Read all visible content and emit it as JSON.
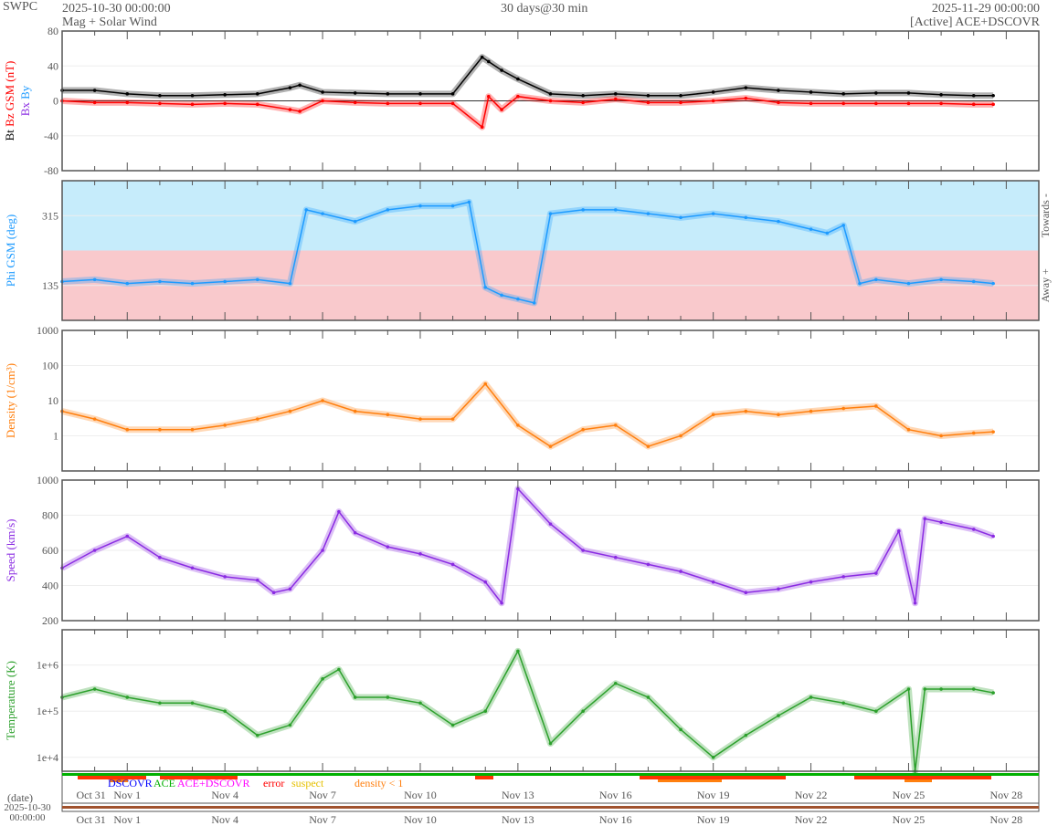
{
  "header": {
    "org": "SWPC",
    "start": "2025-10-30 00:00:00",
    "subtitle": "Mag + Solar Wind",
    "center": "30 days@30 min",
    "end": "2025-11-29 00:00:00",
    "source": "[Active] ACE+DSCOVR"
  },
  "chart_data": {
    "type": "line",
    "x_unit": "days since 2025-10-30 00:00",
    "xlim": [
      0,
      30
    ],
    "x_ticks": [
      {
        "d": 1,
        "label": "Oct 31"
      },
      {
        "d": 2,
        "label": "Nov 1"
      },
      {
        "d": 5,
        "label": "Nov 4"
      },
      {
        "d": 8,
        "label": "Nov 7"
      },
      {
        "d": 11,
        "label": "Nov 10"
      },
      {
        "d": 14,
        "label": "Nov 13"
      },
      {
        "d": 17,
        "label": "Nov 16"
      },
      {
        "d": 20,
        "label": "Nov 19"
      },
      {
        "d": 23,
        "label": "Nov 22"
      },
      {
        "d": 26,
        "label": "Nov 25"
      },
      {
        "d": 29,
        "label": "Nov 28"
      }
    ],
    "panels": [
      {
        "id": "mag",
        "ylabel_parts": [
          {
            "text": "Bt",
            "color": "#000000"
          },
          {
            "text": "Bz GSM (nT)",
            "color": "#ff0000"
          }
        ],
        "legend2": [
          {
            "text": "Bx",
            "color": "#8a2be2"
          },
          {
            "text": "By",
            "color": "#1e9bff"
          }
        ],
        "scale": "linear",
        "ylim": [
          -80,
          80
        ],
        "yticks": [
          80,
          40,
          0,
          -40,
          -80
        ],
        "series": [
          {
            "name": "Bt",
            "color": "#000000",
            "x": [
              0,
              1,
              2,
              3,
              4,
              5,
              6,
              7,
              7.3,
              8,
              9,
              10,
              11,
              12,
              12.9,
              13.1,
              13.5,
              14,
              15,
              16,
              17,
              18,
              19,
              20,
              21,
              22,
              23,
              24,
              25,
              26,
              27,
              28,
              28.6
            ],
            "y": [
              12,
              12,
              8,
              6,
              6,
              7,
              8,
              15,
              18,
              10,
              9,
              8,
              8,
              8,
              50,
              45,
              35,
              25,
              8,
              6,
              8,
              6,
              6,
              10,
              15,
              12,
              10,
              8,
              9,
              9,
              7,
              6,
              6
            ]
          },
          {
            "name": "Bz",
            "color": "#ff0000",
            "x": [
              0,
              1,
              2,
              3,
              4,
              5,
              6,
              7,
              7.3,
              8,
              9,
              10,
              11,
              12,
              12.9,
              13.1,
              13.5,
              14,
              15,
              16,
              17,
              18,
              19,
              20,
              21,
              22,
              23,
              24,
              25,
              26,
              27,
              28,
              28.6
            ],
            "y": [
              0,
              -2,
              -2,
              -3,
              -4,
              -3,
              -4,
              -10,
              -12,
              0,
              -2,
              -3,
              -3,
              -3,
              -30,
              5,
              -10,
              5,
              0,
              -2,
              2,
              -2,
              -2,
              0,
              3,
              -2,
              -3,
              -3,
              -3,
              -3,
              -3,
              -4,
              -4
            ]
          }
        ]
      },
      {
        "id": "phi",
        "ylabel": "Phi GSM (deg)",
        "ylabel_color": "#1e9bff",
        "right_labels": [
          "Towards -",
          "Away +"
        ],
        "scale": "linear",
        "ylim": [
          45,
          405
        ],
        "yticks": [
          315,
          135
        ],
        "series": [
          {
            "name": "Phi",
            "color": "#1e9bff",
            "x": [
              0,
              1,
              2,
              3,
              4,
              5,
              6,
              7,
              7.5,
              8,
              9,
              10,
              11,
              12,
              12.5,
              13,
              13.5,
              14,
              14.5,
              15,
              16,
              17,
              18,
              19,
              20,
              21,
              22,
              23,
              23.5,
              24,
              24.5,
              25,
              26,
              27,
              28,
              28.6
            ],
            "y": [
              145,
              150,
              140,
              145,
              140,
              145,
              150,
              140,
              330,
              320,
              300,
              330,
              340,
              340,
              350,
              130,
              110,
              100,
              90,
              320,
              330,
              330,
              320,
              310,
              320,
              310,
              300,
              280,
              270,
              290,
              140,
              150,
              140,
              150,
              145,
              140
            ]
          }
        ]
      },
      {
        "id": "density",
        "ylabel": "Density (1/cm³)",
        "ylabel_color": "#ff7f0e",
        "scale": "log",
        "ylim": [
          0.1,
          1000
        ],
        "yticks": [
          1000,
          100,
          10,
          1
        ],
        "ytick_labels": [
          "1000",
          "100",
          "10",
          "1"
        ],
        "series": [
          {
            "name": "Density",
            "color": "#ff7f0e",
            "x": [
              0,
              1,
              2,
              3,
              4,
              5,
              6,
              7,
              8,
              9,
              10,
              11,
              12,
              13,
              14,
              15,
              16,
              17,
              18,
              19,
              20,
              21,
              22,
              23,
              24,
              25,
              26,
              27,
              28,
              28.6
            ],
            "y": [
              5,
              3,
              1.5,
              1.5,
              1.5,
              2,
              3,
              5,
              10,
              5,
              4,
              3,
              3,
              30,
              2,
              0.5,
              1.5,
              2,
              0.5,
              1,
              4,
              5,
              4,
              5,
              6,
              7,
              1.5,
              1,
              1.2,
              1.3
            ]
          }
        ]
      },
      {
        "id": "speed",
        "ylabel": "Speed (km/s)",
        "ylabel_color": "#8a2be2",
        "scale": "linear",
        "ylim": [
          200,
          1000
        ],
        "yticks": [
          1000,
          800,
          600,
          400,
          200
        ],
        "series": [
          {
            "name": "Speed",
            "color": "#8a2be2",
            "x": [
              0,
              1,
              2,
              3,
              4,
              5,
              6,
              6.5,
              7,
              8,
              8.5,
              9,
              10,
              11,
              12,
              13,
              13.5,
              14,
              15,
              16,
              17,
              18,
              19,
              20,
              21,
              22,
              23,
              24,
              25,
              25.7,
              26.2,
              26.5,
              27,
              28,
              28.6
            ],
            "y": [
              500,
              600,
              680,
              560,
              500,
              450,
              430,
              360,
              380,
              600,
              820,
              700,
              620,
              580,
              520,
              420,
              300,
              950,
              750,
              600,
              560,
              520,
              480,
              420,
              360,
              380,
              420,
              450,
              470,
              710,
              300,
              780,
              760,
              720,
              680
            ]
          }
        ]
      },
      {
        "id": "temperature",
        "ylabel": "Temperature (K)",
        "ylabel_color": "#2ca02c",
        "scale": "log",
        "ylim": [
          5000,
          5800000
        ],
        "yticks": [
          1000000,
          100000,
          10000
        ],
        "ytick_labels": [
          "1e+6",
          "1e+5",
          "1e+4"
        ],
        "series": [
          {
            "name": "Temperature",
            "color": "#2ca02c",
            "x": [
              0,
              1,
              2,
              3,
              4,
              5,
              6,
              7,
              8,
              8.5,
              9,
              10,
              11,
              12,
              13,
              14,
              15,
              16,
              17,
              18,
              19,
              20,
              21,
              22,
              23,
              24,
              25,
              26,
              26.2,
              26.5,
              27,
              28,
              28.6
            ],
            "y": [
              200000,
              300000,
              200000,
              150000,
              150000,
              100000,
              30000,
              50000,
              500000,
              800000,
              200000,
              200000,
              150000,
              50000,
              100000,
              2000000,
              20000,
              100000,
              400000,
              200000,
              40000,
              10000,
              30000,
              80000,
              200000,
              150000,
              100000,
              300000,
              5000,
              300000,
              300000,
              300000,
              250000
            ]
          }
        ]
      }
    ]
  },
  "legend": [
    {
      "text": "DSCOVR",
      "color": "#0000ff"
    },
    {
      "text": "ACE",
      "color": "#00b000"
    },
    {
      "text": "ACE+DSCOVR",
      "color": "#ff00ff"
    },
    {
      "text": "error",
      "color": "#ff0000"
    },
    {
      "text": "suspect",
      "color": "#e6c000"
    },
    {
      "text": "density < 1",
      "color": "#ff7f0e"
    }
  ],
  "date_axis": {
    "label": "(date)",
    "start_date": "2025-10-30",
    "start_time": "00:00:00"
  }
}
